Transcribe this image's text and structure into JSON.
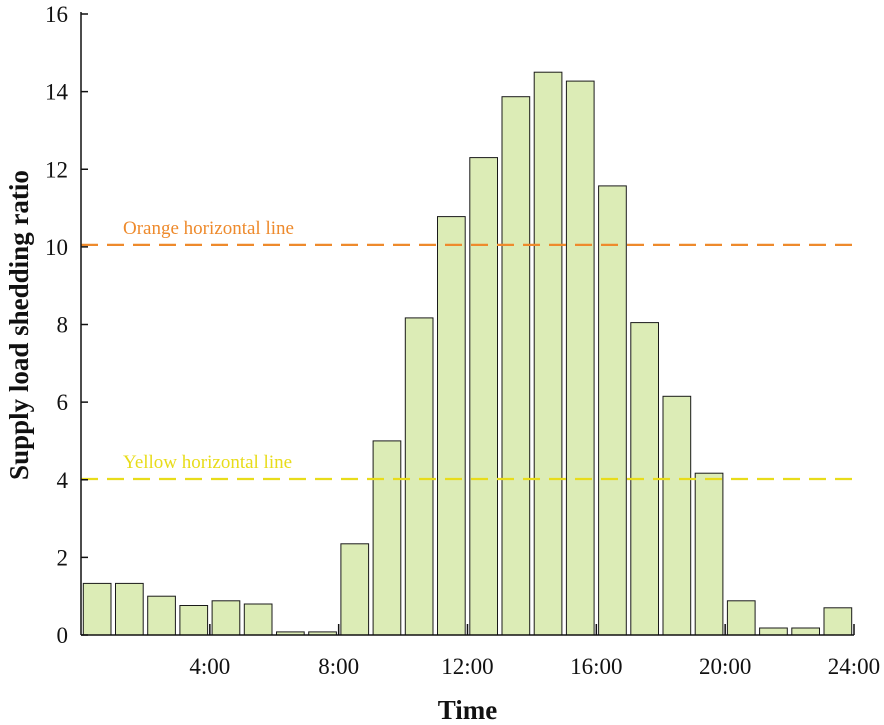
{
  "chart_data": {
    "type": "bar",
    "title": "",
    "xlabel": "Time",
    "ylabel": "Supply load shedding ratio",
    "ylim": [
      0,
      16
    ],
    "xlim": [
      0,
      24
    ],
    "y_ticks": [
      0,
      2,
      4,
      6,
      8,
      10,
      12,
      14,
      16
    ],
    "x_ticks": [
      {
        "value": 4,
        "label": "4:00"
      },
      {
        "value": 8,
        "label": "8:00"
      },
      {
        "value": 12,
        "label": "12:00"
      },
      {
        "value": 16,
        "label": "16:00"
      },
      {
        "value": 20,
        "label": "20:00"
      },
      {
        "value": 24,
        "label": "24:00"
      }
    ],
    "hours": [
      1,
      2,
      3,
      4,
      5,
      6,
      7,
      8,
      9,
      10,
      11,
      12,
      13,
      14,
      15,
      16,
      17,
      18,
      19,
      20,
      21,
      22,
      23,
      24
    ],
    "values": [
      1.33,
      1.33,
      1.0,
      0.76,
      0.88,
      0.8,
      0.08,
      0.08,
      2.35,
      5.0,
      8.17,
      10.78,
      12.3,
      13.87,
      14.5,
      14.27,
      11.57,
      8.05,
      6.15,
      4.17,
      0.88,
      0.18,
      0.18,
      0.7
    ],
    "bar_color": "#dcecb6",
    "reference_lines": [
      {
        "name": "Orange horizontal line",
        "label": "Orange horizontal line",
        "value": 10.05,
        "color": "#ee8a2c"
      },
      {
        "name": "Yellow horizontal line",
        "label": "Yellow horizontal line",
        "value": 4.02,
        "color": "#e8dc1a"
      }
    ]
  }
}
